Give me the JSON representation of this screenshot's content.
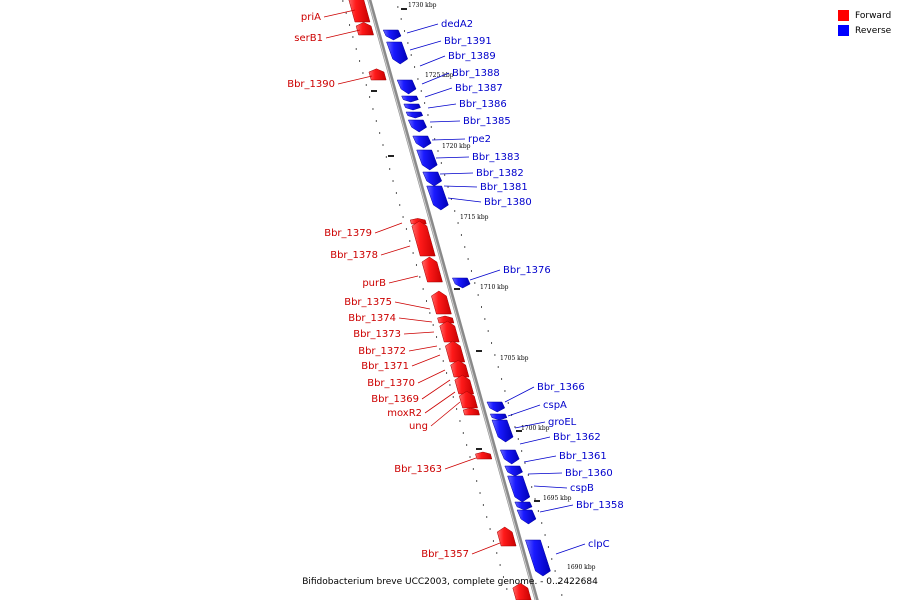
{
  "legend": {
    "forward_label": "Forward",
    "reverse_label": "Reverse",
    "forward_color": "#ff0000",
    "reverse_color": "#0000ff"
  },
  "caption": "Bifidobacterium breve UCC2003, complete genome. - 0..2422684",
  "ticks": [
    "1730 kbp",
    "1725 kbp",
    "1720 kbp",
    "1715 kbp",
    "1710 kbp",
    "1705 kbp",
    "1700 kbp",
    "1695 kbp",
    "1690 kbp"
  ],
  "forward_genes": [
    "priA",
    "serB1",
    "Bbr_1390",
    "Bbr_1379",
    "Bbr_1378",
    "purB",
    "Bbr_1375",
    "Bbr_1374",
    "Bbr_1373",
    "Bbr_1372",
    "Bbr_1371",
    "Bbr_1370",
    "Bbr_1369",
    "moxR2",
    "ung",
    "Bbr_1363",
    "Bbr_1357"
  ],
  "reverse_genes": [
    "dedA2",
    "Bbr_1391",
    "Bbr_1389",
    "Bbr_1388",
    "Bbr_1387",
    "Bbr_1386",
    "Bbr_1385",
    "rpe2",
    "Bbr_1383",
    "Bbr_1382",
    "Bbr_1381",
    "Bbr_1380",
    "Bbr_1376",
    "Bbr_1366",
    "cspA",
    "groEL",
    "Bbr_1362",
    "Bbr_1361",
    "Bbr_1360",
    "cspB",
    "Bbr_1358",
    "clpC"
  ]
}
